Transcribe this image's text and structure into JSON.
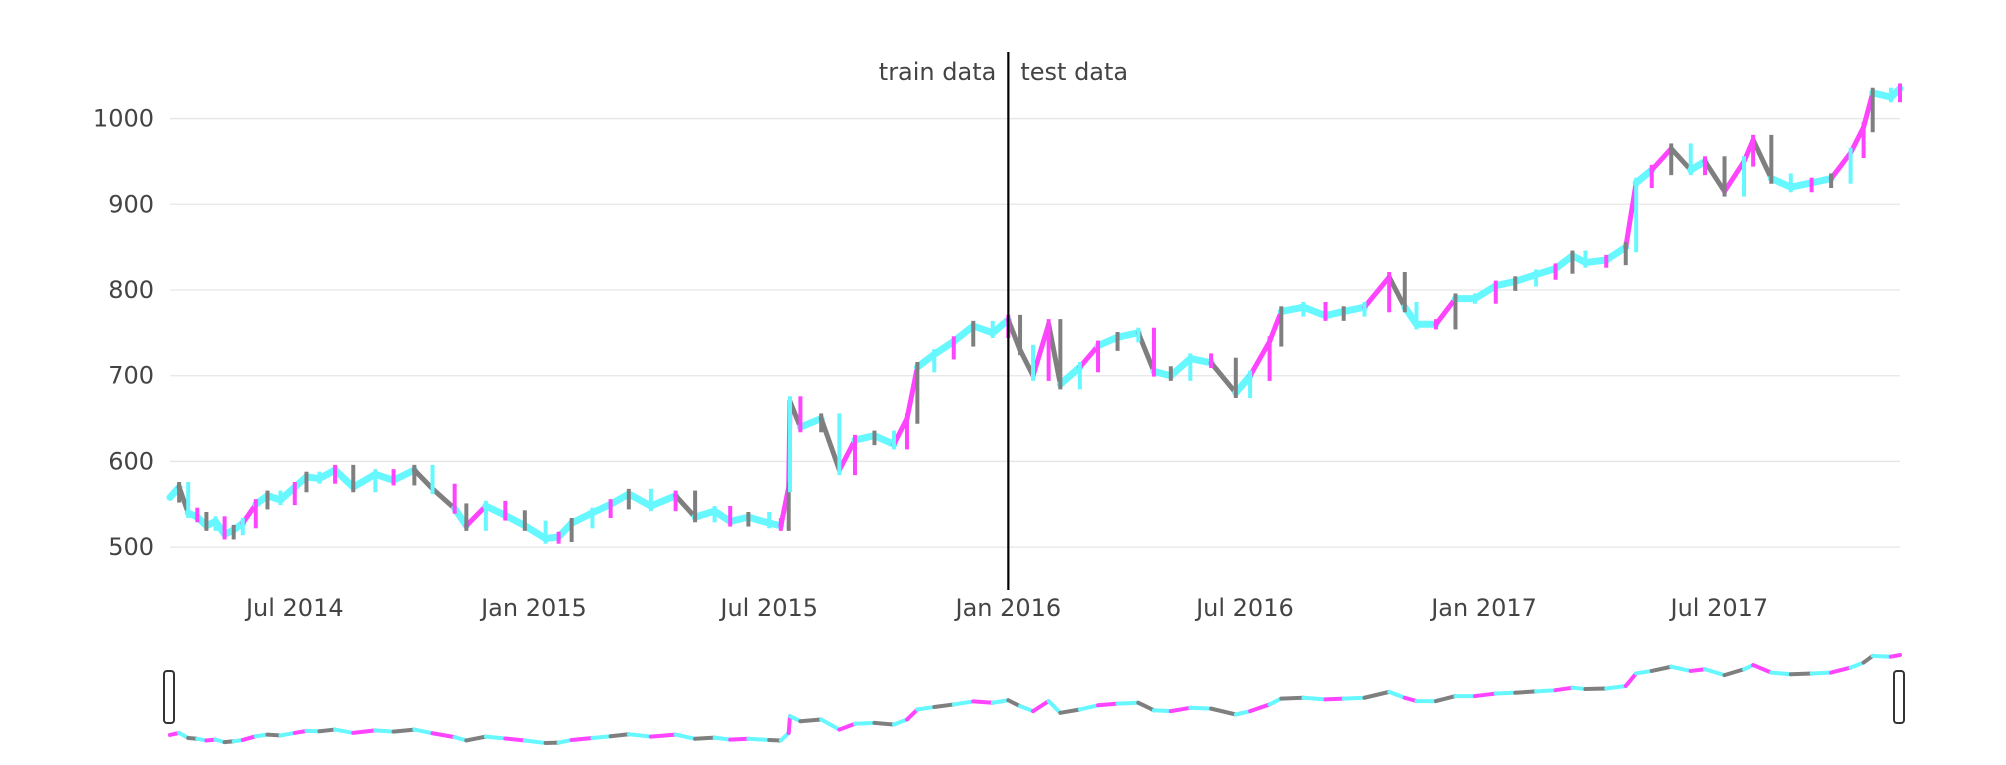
{
  "chart_data": {
    "type": "candlestick",
    "title": "",
    "xlabel": "",
    "ylabel": "",
    "x_range": [
      "2014-03-27",
      "2017-11-17"
    ],
    "ylim": [
      450,
      1080
    ],
    "y_ticks": [
      500,
      600,
      700,
      800,
      900,
      1000
    ],
    "x_ticks": [
      {
        "date": "2014-07-01",
        "label": "Jul 2014"
      },
      {
        "date": "2015-01-01",
        "label": "Jan 2015"
      },
      {
        "date": "2015-07-01",
        "label": "Jul 2015"
      },
      {
        "date": "2016-01-01",
        "label": "Jan 2016"
      },
      {
        "date": "2016-07-01",
        "label": "Jul 2016"
      },
      {
        "date": "2017-01-01",
        "label": "Jan 2017"
      },
      {
        "date": "2017-07-01",
        "label": "Jul 2017"
      }
    ],
    "grid": true,
    "legend": "none",
    "range_slider": true,
    "split": {
      "date": "2016-01-01",
      "left_label": "train data",
      "right_label": "test data",
      "line_color": "#000000"
    },
    "colors": {
      "increasing": "#ff44ff",
      "decreasing": "#7f7f7f",
      "line": "#66f7ff",
      "grid": "#e6e6e6",
      "tick_text": "#444444"
    },
    "series": [
      {
        "points": [
          [
            "2014-03-27",
            558
          ],
          [
            "2014-04-03",
            570
          ],
          [
            "2014-04-10",
            540
          ],
          [
            "2014-04-17",
            535
          ],
          [
            "2014-04-24",
            525
          ],
          [
            "2014-05-01",
            530
          ],
          [
            "2014-05-08",
            515
          ],
          [
            "2014-05-15",
            520
          ],
          [
            "2014-05-22",
            528
          ],
          [
            "2014-06-01",
            550
          ],
          [
            "2014-06-10",
            560
          ],
          [
            "2014-06-20",
            555
          ],
          [
            "2014-07-01",
            570
          ],
          [
            "2014-07-10",
            582
          ],
          [
            "2014-07-20",
            580
          ],
          [
            "2014-08-01",
            590
          ],
          [
            "2014-08-15",
            570
          ],
          [
            "2014-09-01",
            585
          ],
          [
            "2014-09-15",
            578
          ],
          [
            "2014-10-01",
            590
          ],
          [
            "2014-10-15",
            568
          ],
          [
            "2014-11-01",
            545
          ],
          [
            "2014-11-10",
            525
          ],
          [
            "2014-11-25",
            548
          ],
          [
            "2014-12-10",
            537
          ],
          [
            "2014-12-25",
            525
          ],
          [
            "2015-01-10",
            510
          ],
          [
            "2015-01-20",
            512
          ],
          [
            "2015-01-30",
            528
          ],
          [
            "2015-02-15",
            540
          ],
          [
            "2015-03-01",
            550
          ],
          [
            "2015-03-15",
            562
          ],
          [
            "2015-04-01",
            548
          ],
          [
            "2015-04-20",
            560
          ],
          [
            "2015-05-05",
            535
          ],
          [
            "2015-05-20",
            542
          ],
          [
            "2015-06-01",
            530
          ],
          [
            "2015-06-15",
            535
          ],
          [
            "2015-07-01",
            528
          ],
          [
            "2015-07-10",
            525
          ],
          [
            "2015-07-16",
            570
          ],
          [
            "2015-07-17",
            670
          ],
          [
            "2015-07-25",
            640
          ],
          [
            "2015-08-10",
            650
          ],
          [
            "2015-08-24",
            590
          ],
          [
            "2015-09-05",
            625
          ],
          [
            "2015-09-20",
            630
          ],
          [
            "2015-10-05",
            620
          ],
          [
            "2015-10-15",
            650
          ],
          [
            "2015-10-23",
            710
          ],
          [
            "2015-11-05",
            725
          ],
          [
            "2015-11-20",
            740
          ],
          [
            "2015-12-05",
            758
          ],
          [
            "2015-12-20",
            750
          ],
          [
            "2016-01-01",
            765
          ],
          [
            "2016-01-10",
            730
          ],
          [
            "2016-01-20",
            700
          ],
          [
            "2016-02-01",
            760
          ],
          [
            "2016-02-10",
            690
          ],
          [
            "2016-02-25",
            710
          ],
          [
            "2016-03-10",
            735
          ],
          [
            "2016-03-25",
            745
          ],
          [
            "2016-04-10",
            750
          ],
          [
            "2016-04-22",
            705
          ],
          [
            "2016-05-05",
            700
          ],
          [
            "2016-05-20",
            720
          ],
          [
            "2016-06-05",
            715
          ],
          [
            "2016-06-24",
            680
          ],
          [
            "2016-07-05",
            700
          ],
          [
            "2016-07-20",
            740
          ],
          [
            "2016-07-29",
            775
          ],
          [
            "2016-08-15",
            780
          ],
          [
            "2016-09-01",
            770
          ],
          [
            "2016-09-15",
            775
          ],
          [
            "2016-10-01",
            780
          ],
          [
            "2016-10-20",
            815
          ],
          [
            "2016-11-01",
            780
          ],
          [
            "2016-11-10",
            760
          ],
          [
            "2016-11-25",
            760
          ],
          [
            "2016-12-10",
            790
          ],
          [
            "2016-12-25",
            790
          ],
          [
            "2017-01-10",
            805
          ],
          [
            "2017-01-25",
            810
          ],
          [
            "2017-02-10",
            818
          ],
          [
            "2017-02-25",
            825
          ],
          [
            "2017-03-10",
            840
          ],
          [
            "2017-03-20",
            832
          ],
          [
            "2017-04-05",
            835
          ],
          [
            "2017-04-20",
            850
          ],
          [
            "2017-04-28",
            925
          ],
          [
            "2017-05-10",
            940
          ],
          [
            "2017-05-25",
            965
          ],
          [
            "2017-06-09",
            940
          ],
          [
            "2017-06-20",
            950
          ],
          [
            "2017-07-05",
            915
          ],
          [
            "2017-07-20",
            950
          ],
          [
            "2017-07-27",
            975
          ],
          [
            "2017-08-10",
            930
          ],
          [
            "2017-08-25",
            920
          ],
          [
            "2017-09-10",
            925
          ],
          [
            "2017-09-25",
            930
          ],
          [
            "2017-10-10",
            960
          ],
          [
            "2017-10-20",
            990
          ],
          [
            "2017-10-27",
            1030
          ],
          [
            "2017-11-10",
            1025
          ],
          [
            "2017-11-17",
            1035
          ]
        ]
      }
    ]
  }
}
